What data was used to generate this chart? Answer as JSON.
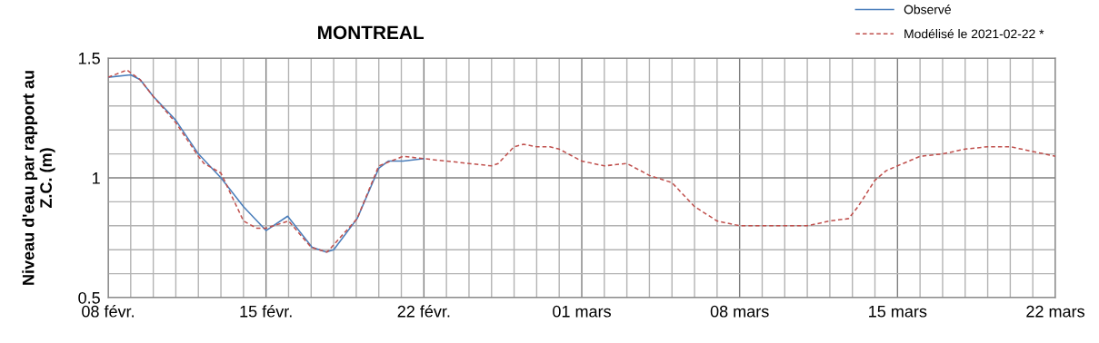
{
  "chart_data": {
    "type": "line",
    "title": "MONTREAL",
    "ylabel": "Niveau d'eau par rapport au\nZ.C. (m)",
    "series": [
      {
        "name": "Observé",
        "color": "#4a7ebb",
        "line_style": "solid",
        "x": [
          "2021-02-08",
          "2021-02-09",
          "2021-02-09T10:00",
          "2021-02-10",
          "2021-02-10T17:00",
          "2021-02-11",
          "2021-02-12",
          "2021-02-13",
          "2021-02-14",
          "2021-02-15",
          "2021-02-15T23:00",
          "2021-02-17T01:00",
          "2021-02-17T16:00",
          "2021-02-18",
          "2021-02-19T01:00",
          "2021-02-20",
          "2021-02-20T10:00",
          "2021-02-21T02:00",
          "2021-02-22"
        ],
        "values": [
          1.42,
          1.43,
          1.41,
          1.34,
          1.27,
          1.24,
          1.1,
          1.0,
          0.88,
          0.78,
          0.84,
          0.71,
          0.69,
          0.7,
          0.83,
          1.04,
          1.07,
          1.07,
          1.08
        ]
      },
      {
        "name": "Modélisé le 2021-02-22 *",
        "color": "#c0504d",
        "line_style": "dashed",
        "x": [
          "2021-02-08",
          "2021-02-08T20:00",
          "2021-02-09T10:00",
          "2021-02-10",
          "2021-02-11",
          "2021-02-12",
          "2021-02-12T06:00",
          "2021-02-13",
          "2021-02-14",
          "2021-02-14T14:00",
          "2021-02-15",
          "2021-02-16",
          "2021-02-17",
          "2021-02-17T17:00",
          "2021-02-19T01:00",
          "2021-02-20",
          "2021-02-21T02:00",
          "2021-02-22",
          "2021-02-23",
          "2021-02-24",
          "2021-02-25",
          "2021-02-25T07:00",
          "2021-02-26",
          "2021-02-26T10:00",
          "2021-02-27",
          "2021-02-27T14:00",
          "2021-02-28",
          "2021-03-01",
          "2021-03-02",
          "2021-03-03",
          "2021-03-04",
          "2021-03-05",
          "2021-03-06",
          "2021-03-07",
          "2021-03-08",
          "2021-03-09",
          "2021-03-10",
          "2021-03-11",
          "2021-03-12",
          "2021-03-12T20:00",
          "2021-03-13T06:00",
          "2021-03-14",
          "2021-03-14T12:00",
          "2021-03-15",
          "2021-03-16",
          "2021-03-17",
          "2021-03-18",
          "2021-03-19",
          "2021-03-20",
          "2021-03-21",
          "2021-03-22"
        ],
        "values": [
          1.42,
          1.45,
          1.41,
          1.34,
          1.23,
          1.09,
          1.06,
          1.02,
          0.82,
          0.79,
          0.79,
          0.82,
          0.71,
          0.69,
          0.83,
          1.05,
          1.09,
          1.08,
          1.07,
          1.06,
          1.05,
          1.06,
          1.13,
          1.14,
          1.13,
          1.13,
          1.12,
          1.07,
          1.05,
          1.06,
          1.01,
          0.98,
          0.88,
          0.82,
          0.8,
          0.8,
          0.8,
          0.8,
          0.82,
          0.83,
          0.88,
          0.99,
          1.03,
          1.05,
          1.09,
          1.1,
          1.12,
          1.13,
          1.13,
          1.11,
          1.09
        ]
      }
    ],
    "xlim": [
      "2021-02-08",
      "2021-03-22"
    ],
    "xticks": [
      {
        "value": "2021-02-08",
        "label": "08 févr."
      },
      {
        "value": "2021-02-09",
        "label": null
      },
      {
        "value": "2021-02-10",
        "label": null
      },
      {
        "value": "2021-02-11",
        "label": null
      },
      {
        "value": "2021-02-12",
        "label": null
      },
      {
        "value": "2021-02-13",
        "label": null
      },
      {
        "value": "2021-02-14",
        "label": null
      },
      {
        "value": "2021-02-15",
        "label": "15 févr."
      },
      {
        "value": "2021-02-16",
        "label": null
      },
      {
        "value": "2021-02-17",
        "label": null
      },
      {
        "value": "2021-02-18",
        "label": null
      },
      {
        "value": "2021-02-19",
        "label": null
      },
      {
        "value": "2021-02-20",
        "label": null
      },
      {
        "value": "2021-02-21",
        "label": null
      },
      {
        "value": "2021-02-22",
        "label": "22 févr."
      },
      {
        "value": "2021-02-23",
        "label": null
      },
      {
        "value": "2021-02-24",
        "label": null
      },
      {
        "value": "2021-02-25",
        "label": null
      },
      {
        "value": "2021-02-26",
        "label": null
      },
      {
        "value": "2021-02-27",
        "label": null
      },
      {
        "value": "2021-02-28",
        "label": null
      },
      {
        "value": "2021-03-01",
        "label": "01 mars"
      },
      {
        "value": "2021-03-02",
        "label": null
      },
      {
        "value": "2021-03-03",
        "label": null
      },
      {
        "value": "2021-03-04",
        "label": null
      },
      {
        "value": "2021-03-05",
        "label": null
      },
      {
        "value": "2021-03-06",
        "label": null
      },
      {
        "value": "2021-03-07",
        "label": null
      },
      {
        "value": "2021-03-08",
        "label": "08 mars"
      },
      {
        "value": "2021-03-09",
        "label": null
      },
      {
        "value": "2021-03-10",
        "label": null
      },
      {
        "value": "2021-03-11",
        "label": null
      },
      {
        "value": "2021-03-12",
        "label": null
      },
      {
        "value": "2021-03-13",
        "label": null
      },
      {
        "value": "2021-03-14",
        "label": null
      },
      {
        "value": "2021-03-15",
        "label": "15 mars"
      },
      {
        "value": "2021-03-16",
        "label": null
      },
      {
        "value": "2021-03-17",
        "label": null
      },
      {
        "value": "2021-03-18",
        "label": null
      },
      {
        "value": "2021-03-19",
        "label": null
      },
      {
        "value": "2021-03-20",
        "label": null
      },
      {
        "value": "2021-03-21",
        "label": null
      },
      {
        "value": "2021-03-22",
        "label": "22 mars"
      }
    ],
    "ylim": [
      0.5,
      1.5
    ],
    "yticks": [
      0.5,
      {
        "value": 0.6,
        "label": null
      },
      {
        "value": 0.7,
        "label": null
      },
      {
        "value": 0.8,
        "label": null
      },
      {
        "value": 0.9,
        "label": null
      },
      1,
      {
        "value": 1.1,
        "label": null
      },
      {
        "value": 1.2,
        "label": null
      },
      {
        "value": 1.3,
        "label": null
      },
      {
        "value": 1.4,
        "label": null
      },
      1.5
    ],
    "grid": true,
    "legend": "top right"
  }
}
